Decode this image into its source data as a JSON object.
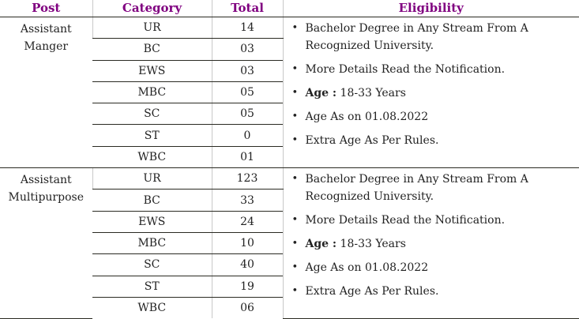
{
  "table": {
    "headers": [
      "Post",
      "Category",
      "Total",
      "Eligibility"
    ],
    "header_color": "#800080",
    "groups": [
      {
        "post": [
          "Assistant",
          "Manger"
        ],
        "rows": [
          {
            "category": "UR",
            "total": "14"
          },
          {
            "category": "BC",
            "total": "03"
          },
          {
            "category": "EWS",
            "total": "03"
          },
          {
            "category": "MBC",
            "total": "05"
          },
          {
            "category": "SC",
            "total": "05"
          },
          {
            "category": "ST",
            "total": "0"
          },
          {
            "category": "WBC",
            "total": "01"
          }
        ],
        "eligibility": {
          "degree": "Bachelor Degree in Any Stream From A Recognized University.",
          "details": "More Details Read the Notification.",
          "age_label": "Age :",
          "age_value": " 18-33 Years",
          "age_as_on": "Age As on 01.08.2022",
          "extra_age": "Extra Age As Per Rules."
        }
      },
      {
        "post": [
          "Assistant",
          "Multipurpose"
        ],
        "rows": [
          {
            "category": "UR",
            "total": "123"
          },
          {
            "category": "BC",
            "total": "33"
          },
          {
            "category": "EWS",
            "total": "24"
          },
          {
            "category": "MBC",
            "total": "10"
          },
          {
            "category": "SC",
            "total": "40"
          },
          {
            "category": "ST",
            "total": "19"
          },
          {
            "category": "WBC",
            "total": "06"
          }
        ],
        "eligibility": {
          "degree": "Bachelor Degree in Any Stream From A Recognized University.",
          "details": "More Details Read the Notification.",
          "age_label": "Age :",
          "age_value": " 18-33 Years",
          "age_as_on": "Age As on 01.08.2022",
          "extra_age": "Extra Age As Per Rules."
        }
      }
    ]
  }
}
